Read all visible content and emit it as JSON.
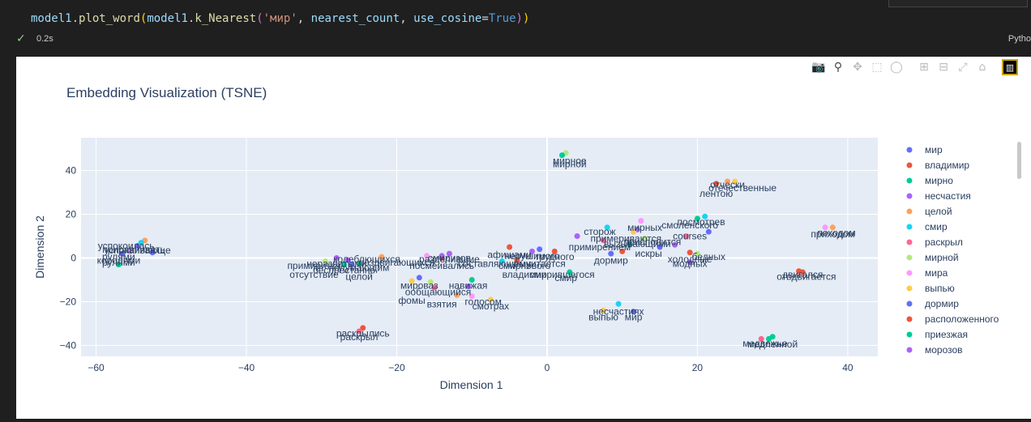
{
  "code": {
    "segments": [
      {
        "t": "model1",
        "c": "var"
      },
      {
        "t": ".",
        "c": ""
      },
      {
        "t": "plot_word",
        "c": "fn"
      },
      {
        "t": "(",
        "c": "p1"
      },
      {
        "t": "model1",
        "c": "var"
      },
      {
        "t": ".",
        "c": ""
      },
      {
        "t": "k_Nearest",
        "c": "fn"
      },
      {
        "t": "(",
        "c": "p2"
      },
      {
        "t": "'мир'",
        "c": "str"
      },
      {
        "t": ", ",
        "c": ""
      },
      {
        "t": "nearest_count",
        "c": "var"
      },
      {
        "t": ", ",
        "c": ""
      },
      {
        "t": "use_cosine",
        "c": "var"
      },
      {
        "t": "=",
        "c": ""
      },
      {
        "t": "True",
        "c": "kw"
      },
      {
        "t": ")",
        "c": "p2"
      },
      {
        "t": ")",
        "c": "p1"
      }
    ]
  },
  "status": {
    "time": "0.2s",
    "kernel": "Pytho"
  },
  "modebar": {
    "icons": [
      "camera-icon",
      "zoom-icon",
      "pan-icon",
      "box-select-icon",
      "lasso-icon",
      "zoom-in-icon",
      "zoom-out-icon",
      "autoscale-icon",
      "reset-axes-icon",
      "plotly-logo-icon"
    ]
  },
  "chart_data": {
    "type": "scatter",
    "title": "Embedding Visualization (TSNE)",
    "xlabel": "Dimension 1",
    "ylabel": "Dimension 2",
    "xlim": [
      -62,
      44
    ],
    "ylim": [
      -45,
      55
    ],
    "xticks": [
      -60,
      -40,
      -20,
      0,
      20,
      40
    ],
    "yticks": [
      -40,
      -20,
      0,
      20,
      40
    ],
    "xtick_labels": [
      "−60",
      "−40",
      "−20",
      "0",
      "20",
      "40"
    ],
    "ytick_labels": [
      "−40",
      "−20",
      "0",
      "20",
      "40"
    ],
    "grid": true,
    "legend_position": "right",
    "series": [
      {
        "name": "мир",
        "color": "#636efa",
        "points": [
          [
            -54.5,
            5.5
          ],
          [
            -52.5,
            2.5
          ],
          [
            21.5,
            12
          ],
          [
            11.5,
            -24.5
          ],
          [
            -17,
            -9
          ]
        ]
      },
      {
        "name": "владимир",
        "color": "#ef553b",
        "points": [
          [
            -24.5,
            -32
          ],
          [
            -5,
            5
          ],
          [
            1,
            3
          ],
          [
            22.5,
            34
          ],
          [
            33.5,
            -6
          ]
        ]
      },
      {
        "name": "мирно",
        "color": "#00cc96",
        "points": [
          [
            -57,
            -3
          ],
          [
            -27,
            -3
          ],
          [
            3,
            -6.5
          ],
          [
            20,
            18
          ],
          [
            29.5,
            -37
          ]
        ]
      },
      {
        "name": "несчастия",
        "color": "#ab63fa",
        "points": [
          [
            -28,
            0
          ],
          [
            -13,
            2
          ],
          [
            -2,
            3
          ],
          [
            12,
            13
          ],
          [
            19,
            -2
          ]
        ]
      },
      {
        "name": "целой",
        "color": "#ffa15a",
        "points": [
          [
            -53.5,
            8
          ],
          [
            -22,
            0.5
          ],
          [
            -12,
            -17
          ],
          [
            24,
            35
          ],
          [
            38,
            14
          ]
        ]
      },
      {
        "name": "смир",
        "color": "#19d3f3",
        "points": [
          [
            -54,
            7
          ],
          [
            -6,
            -1.5
          ],
          [
            8,
            14
          ],
          [
            9.5,
            -21
          ],
          [
            21,
            19
          ]
        ]
      },
      {
        "name": "раскрыл",
        "color": "#ff6692",
        "points": [
          [
            -25,
            -33.5
          ],
          [
            -15,
            -13.5
          ],
          [
            7.5,
            8
          ],
          [
            18.5,
            10
          ],
          [
            28.5,
            -37
          ]
        ]
      },
      {
        "name": "мирной",
        "color": "#b6e880",
        "points": [
          [
            -29.5,
            -1.5
          ],
          [
            -15.5,
            -11
          ],
          [
            2.5,
            48
          ],
          [
            13,
            9
          ],
          [
            20,
            2
          ]
        ]
      },
      {
        "name": "мира",
        "color": "#ff97ff",
        "points": [
          [
            -55.5,
            3
          ],
          [
            -16,
            1
          ],
          [
            -10,
            -17.5
          ],
          [
            12.5,
            17
          ],
          [
            37,
            14
          ]
        ]
      },
      {
        "name": "выпью",
        "color": "#fecb52",
        "points": [
          [
            -18,
            -10.5
          ],
          [
            -7.5,
            -19
          ],
          [
            7.5,
            -24
          ],
          [
            11.5,
            12
          ],
          [
            25,
            35
          ]
        ]
      },
      {
        "name": "дормир",
        "color": "#636efa",
        "points": [
          [
            -56.5,
            2
          ],
          [
            -26,
            -3
          ],
          [
            -1,
            4
          ],
          [
            8.5,
            2
          ],
          [
            15,
            5
          ]
        ]
      },
      {
        "name": "расположенного",
        "color": "#ef553b",
        "points": [
          [
            -14,
            0
          ],
          [
            -4,
            -1
          ],
          [
            10,
            3
          ],
          [
            19,
            2.5
          ],
          [
            34,
            -6.5
          ]
        ]
      },
      {
        "name": "приезжая",
        "color": "#00cc96",
        "points": [
          [
            -25,
            -2.5
          ],
          [
            -10,
            -10
          ],
          [
            2,
            47
          ],
          [
            11,
            6
          ],
          [
            30,
            -36
          ]
        ]
      },
      {
        "name": "морозов",
        "color": "#ab63fa",
        "points": [
          [
            -26.5,
            -1
          ],
          [
            -14,
            1
          ],
          [
            -10.5,
            -13
          ],
          [
            4,
            10
          ],
          [
            17,
            6
          ]
        ]
      }
    ],
    "annotations": [
      {
        "text": "успокоилась",
        "x": -56,
        "y": 4
      },
      {
        "text": "успокаивающе",
        "x": -54.5,
        "y": 2
      },
      {
        "text": "приравнивать",
        "x": -55,
        "y": 2.5
      },
      {
        "text": "рулями",
        "x": -57,
        "y": -1
      },
      {
        "text": "королями",
        "x": -57,
        "y": -2.5
      },
      {
        "text": "рулями",
        "x": -57,
        "y": -3.5
      },
      {
        "text": "примирится",
        "x": -31,
        "y": -5
      },
      {
        "text": "неразвитыми",
        "x": -28,
        "y": -4
      },
      {
        "text": "колеблющихся",
        "x": -24,
        "y": -2
      },
      {
        "text": "подумающим",
        "x": -25,
        "y": -6
      },
      {
        "text": "беспрестанно",
        "x": -27,
        "y": -7
      },
      {
        "text": "отсутствие",
        "x": -31,
        "y": -9
      },
      {
        "text": "целой",
        "x": -25,
        "y": -10
      },
      {
        "text": "раздвигающихся",
        "x": -20,
        "y": -3.5
      },
      {
        "text": "разделившие",
        "x": -13,
        "y": -2
      },
      {
        "text": "посмеивались",
        "x": -14,
        "y": -5
      },
      {
        "text": "смиризов",
        "x": -13,
        "y": -1.5
      },
      {
        "text": "составляющему",
        "x": -7,
        "y": -4
      },
      {
        "text": "смирнового",
        "x": -3,
        "y": -5
      },
      {
        "text": "вычитается",
        "x": -1,
        "y": -4
      },
      {
        "text": "афишами",
        "x": -5,
        "y": 0
      },
      {
        "text": "нерушимого",
        "x": -2,
        "y": -0.5
      },
      {
        "text": "трудного",
        "x": 1,
        "y": -1
      },
      {
        "text": "владимир",
        "x": -3,
        "y": -9
      },
      {
        "text": "смирившегося",
        "x": 2,
        "y": -9
      },
      {
        "text": "смир",
        "x": 2.5,
        "y": -10.5
      },
      {
        "text": "мироваз",
        "x": -17,
        "y": -14
      },
      {
        "text": "ообщающийся",
        "x": -14.5,
        "y": -17
      },
      {
        "text": "навижая",
        "x": -10.5,
        "y": -14
      },
      {
        "text": "фомы",
        "x": -18,
        "y": -21
      },
      {
        "text": "взятия",
        "x": -14,
        "y": -22.5
      },
      {
        "text": "голосом",
        "x": -8.5,
        "y": -21.5
      },
      {
        "text": "смотрах",
        "x": -7.5,
        "y": -23.5
      },
      {
        "text": "мирное",
        "x": 3,
        "y": 43
      },
      {
        "text": "мирной",
        "x": 3,
        "y": 41.5
      },
      {
        "text": "отчески",
        "x": 24,
        "y": 32
      },
      {
        "text": "отечественные",
        "x": 26,
        "y": 30.5
      },
      {
        "text": "лентою",
        "x": 22.5,
        "y": 28
      },
      {
        "text": "посмотрев",
        "x": 20.5,
        "y": 15
      },
      {
        "text": "мирных",
        "x": 13,
        "y": 12.5
      },
      {
        "text": "смоленского",
        "x": 19,
        "y": 13.5
      },
      {
        "text": "сторож",
        "x": 7,
        "y": 10.5
      },
      {
        "text": "примериваются",
        "x": 10.5,
        "y": 7.5
      },
      {
        "text": "примирением",
        "x": 7,
        "y": 3.5
      },
      {
        "text": "вызывающими",
        "x": 12,
        "y": 5
      },
      {
        "text": "прислонится",
        "x": 14,
        "y": 6
      },
      {
        "text": "courses",
        "x": 19,
        "y": 8.5
      },
      {
        "text": "искры",
        "x": 13.5,
        "y": 0.5
      },
      {
        "text": "дормир",
        "x": 8.5,
        "y": -2.5
      },
      {
        "text": "холодные",
        "x": 19,
        "y": -2
      },
      {
        "text": "бедных",
        "x": 21.5,
        "y": -1
      },
      {
        "text": "модных",
        "x": 19,
        "y": -4
      },
      {
        "text": "приходом",
        "x": 38,
        "y": 9.5
      },
      {
        "text": "походом",
        "x": 38.5,
        "y": 10
      },
      {
        "text": "двигался",
        "x": 34,
        "y": -9
      },
      {
        "text": "отодвигается",
        "x": 34.5,
        "y": -10
      },
      {
        "text": "несчастиях",
        "x": 9.5,
        "y": -26
      },
      {
        "text": "выпью",
        "x": 7.5,
        "y": -28.5
      },
      {
        "text": "мир",
        "x": 11.5,
        "y": -28.5
      },
      {
        "text": "раскрылись",
        "x": -24.5,
        "y": -36
      },
      {
        "text": "раскрыл",
        "x": -25,
        "y": -37.5
      },
      {
        "text": "медвежье",
        "x": 29,
        "y": -40.5
      },
      {
        "text": "медленной",
        "x": 30,
        "y": -41
      }
    ]
  }
}
